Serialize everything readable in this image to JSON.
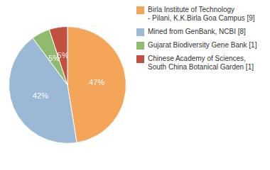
{
  "chart_data": {
    "type": "pie",
    "categories": [
      "Birla Institute of Technology\n- Pilani, K.K.Birla Goa Campus [9]",
      "Mined from GenBank, NCBI [8]",
      "Gujarat Biodiversity Gene Bank [1]",
      "Chinese Academy of Sciences,\nSouth China Botanical Garden [1]"
    ],
    "values": [
      47,
      42,
      5,
      5
    ],
    "value_labels": [
      "47%",
      "42%",
      "5%",
      "5%"
    ],
    "colors": [
      "#F5A55A",
      "#9BB8D4",
      "#90BB6E",
      "#C05040"
    ],
    "data_labels": true,
    "legend": "right"
  }
}
